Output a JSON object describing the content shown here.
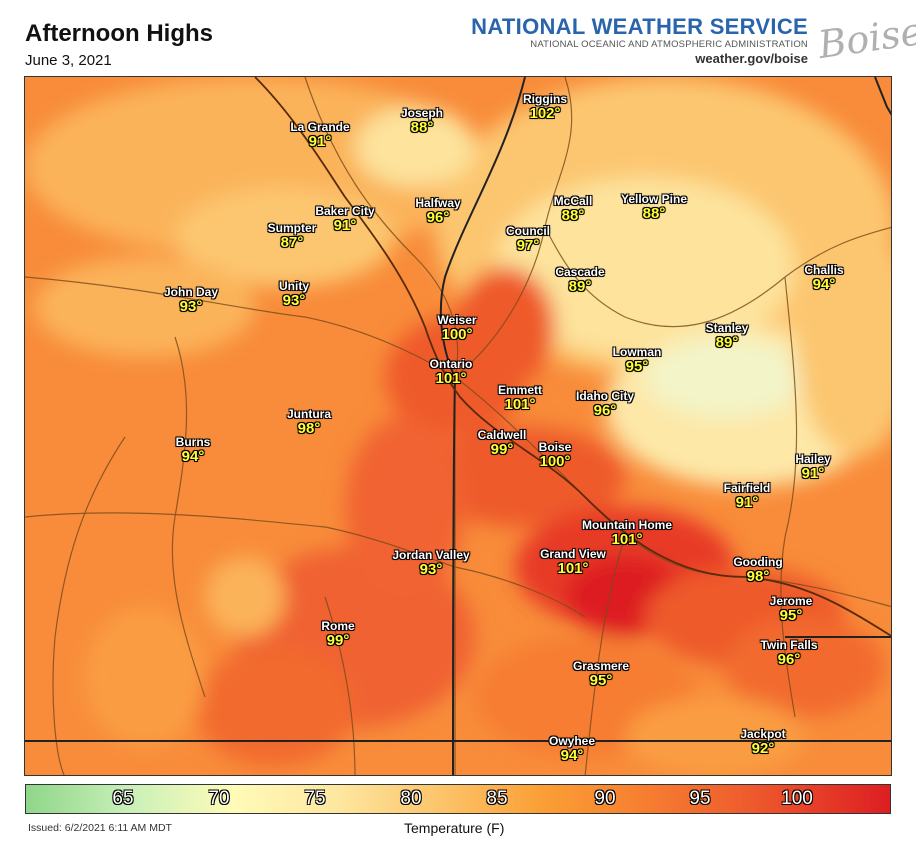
{
  "title": "Afternoon Highs",
  "date": "June 3, 2021",
  "header": {
    "agency": "NATIONAL WEATHER SERVICE",
    "agency_sub": "NATIONAL OCEANIC AND ATMOSPHERIC ADMINISTRATION",
    "url": "weather.gov/boise",
    "office": "Boise"
  },
  "cities": [
    {
      "name": "La Grande",
      "temp": "91°"
    },
    {
      "name": "Joseph",
      "temp": "88°"
    },
    {
      "name": "Riggins",
      "temp": "102°"
    },
    {
      "name": "Baker City",
      "temp": "91°"
    },
    {
      "name": "Sumpter",
      "temp": "87°"
    },
    {
      "name": "Halfway",
      "temp": "96°"
    },
    {
      "name": "McCall",
      "temp": "88°"
    },
    {
      "name": "Yellow Pine",
      "temp": "88°"
    },
    {
      "name": "Council",
      "temp": "97°"
    },
    {
      "name": "Cascade",
      "temp": "89°"
    },
    {
      "name": "Challis",
      "temp": "94°"
    },
    {
      "name": "John Day",
      "temp": "93°"
    },
    {
      "name": "Unity",
      "temp": "93°"
    },
    {
      "name": "Weiser",
      "temp": "100°"
    },
    {
      "name": "Stanley",
      "temp": "89°"
    },
    {
      "name": "Lowman",
      "temp": "95°"
    },
    {
      "name": "Ontario",
      "temp": "101°"
    },
    {
      "name": "Emmett",
      "temp": "101°"
    },
    {
      "name": "Idaho City",
      "temp": "96°"
    },
    {
      "name": "Juntura",
      "temp": "98°"
    },
    {
      "name": "Caldwell",
      "temp": "99°"
    },
    {
      "name": "Boise",
      "temp": "100°"
    },
    {
      "name": "Burns",
      "temp": "94°"
    },
    {
      "name": "Hailey",
      "temp": "91°"
    },
    {
      "name": "Fairfield",
      "temp": "91°"
    },
    {
      "name": "Mountain Home",
      "temp": "101°"
    },
    {
      "name": "Grand View",
      "temp": "101°"
    },
    {
      "name": "Jordan Valley",
      "temp": "93°"
    },
    {
      "name": "Gooding",
      "temp": "98°"
    },
    {
      "name": "Jerome",
      "temp": "95°"
    },
    {
      "name": "Rome",
      "temp": "99°"
    },
    {
      "name": "Twin Falls",
      "temp": "96°"
    },
    {
      "name": "Grasmere",
      "temp": "95°"
    },
    {
      "name": "Owyhee",
      "temp": "94°"
    },
    {
      "name": "Jackpot",
      "temp": "92°"
    }
  ],
  "legend": {
    "labels": [
      "65",
      "70",
      "75",
      "80",
      "85",
      "90",
      "95",
      "100"
    ],
    "unit": "Temperature (F)",
    "colors": [
      "#8fd68a",
      "#c9f0b8",
      "#fffbb8",
      "#fde7a0",
      "#fcc46a",
      "#fb9e35",
      "#f67d30",
      "#ee5a2d",
      "#dd1e22"
    ]
  },
  "issued": "Issued: 6/2/2021 6:11 AM MDT"
}
